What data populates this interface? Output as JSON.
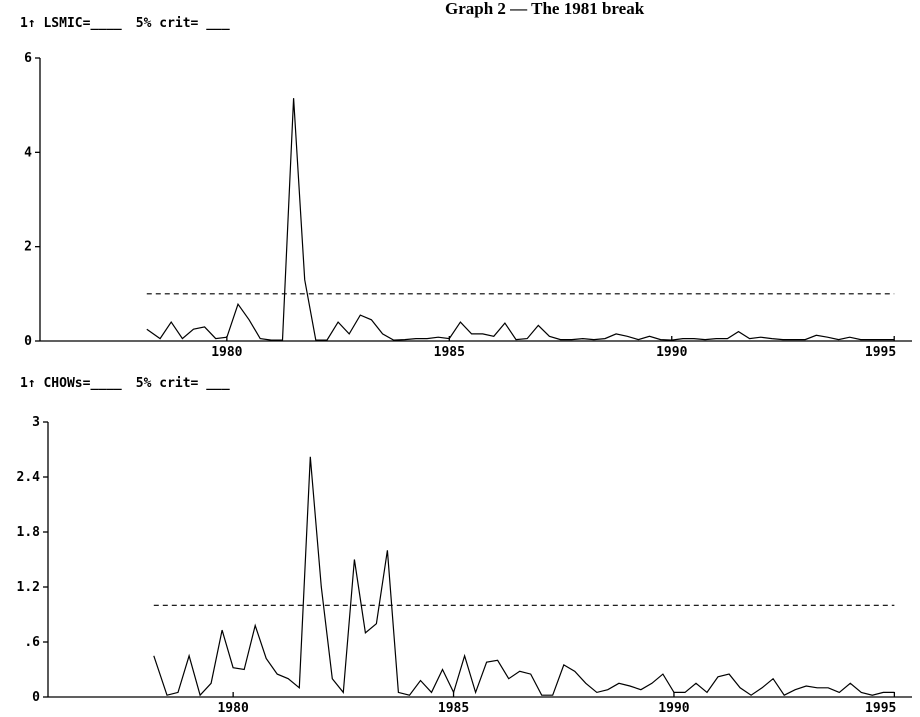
{
  "page": {
    "title": "Graph 2 — The 1981 break"
  },
  "chart_data": [
    {
      "type": "line",
      "legend": {
        "prefix": "1↑ LSMIC=",
        "series_label": "LSMIC",
        "crit_label": "5% crit=",
        "placement": "top-left"
      },
      "xlim": [
        1975.8,
        1995.4
      ],
      "ylim": [
        0,
        6
      ],
      "xticks": [
        1980,
        1985,
        1990,
        1995
      ],
      "xtick_labels": [
        "1980",
        "1985",
        "1990",
        "1995"
      ],
      "yticks": [
        0,
        2,
        4,
        6
      ],
      "ytick_labels": [
        "0",
        "2",
        "4",
        "6"
      ],
      "grid": false,
      "critical_value": 1.0,
      "critical_range": [
        1978.2,
        1995.0
      ],
      "series": [
        {
          "x": [
            1978.2,
            1978.5,
            1978.75,
            1979.0,
            1979.25,
            1979.5,
            1979.75,
            1980.0,
            1980.25,
            1980.5,
            1980.75,
            1981.0,
            1981.25,
            1981.5,
            1981.75,
            1982.0,
            1982.25,
            1982.5,
            1982.75,
            1983.0,
            1983.25,
            1983.5,
            1983.75,
            1984.0,
            1984.25,
            1984.5,
            1984.75,
            1985.0,
            1985.25,
            1985.5,
            1985.75,
            1986.0,
            1986.25,
            1986.5,
            1986.75,
            1987.0,
            1987.25,
            1987.5,
            1987.75,
            1988.0,
            1988.25,
            1988.5,
            1988.75,
            1989.0,
            1989.25,
            1989.5,
            1989.75,
            1990.0,
            1990.25,
            1990.5,
            1990.75,
            1991.0,
            1991.25,
            1991.5,
            1991.75,
            1992.0,
            1992.25,
            1992.5,
            1992.75,
            1993.0,
            1993.25,
            1993.5,
            1993.75,
            1994.0,
            1994.25,
            1994.5,
            1994.75,
            1995.0
          ],
          "values": [
            0.25,
            0.05,
            0.4,
            0.05,
            0.25,
            0.3,
            0.05,
            0.08,
            0.78,
            0.45,
            0.05,
            0.02,
            0.02,
            5.15,
            1.3,
            0.02,
            0.02,
            0.4,
            0.15,
            0.55,
            0.45,
            0.15,
            0.02,
            0.03,
            0.05,
            0.05,
            0.08,
            0.05,
            0.4,
            0.15,
            0.15,
            0.1,
            0.38,
            0.03,
            0.05,
            0.33,
            0.1,
            0.03,
            0.03,
            0.05,
            0.03,
            0.05,
            0.15,
            0.1,
            0.03,
            0.1,
            0.03,
            0.02,
            0.05,
            0.05,
            0.03,
            0.05,
            0.05,
            0.2,
            0.05,
            0.08,
            0.05,
            0.03,
            0.03,
            0.03,
            0.12,
            0.08,
            0.03,
            0.08,
            0.03,
            0.03,
            0.03,
            0.03
          ]
        }
      ]
    },
    {
      "type": "line",
      "legend": {
        "prefix": "1↑ CHOWs=",
        "series_label": "CHOWs",
        "crit_label": "5% crit=",
        "placement": "top-left"
      },
      "xlim": [
        1975.8,
        1995.4
      ],
      "ylim": [
        0,
        3
      ],
      "xticks": [
        1980,
        1985,
        1990,
        1995
      ],
      "xtick_labels": [
        "1980",
        "1985",
        "1990",
        "1995"
      ],
      "yticks": [
        0,
        0.6,
        1.2,
        1.8,
        2.4,
        3
      ],
      "ytick_labels": [
        "0",
        ".6",
        "1.2",
        "1.8",
        "2.4",
        "3"
      ],
      "grid": false,
      "critical_value": 1.0,
      "critical_range": [
        1978.2,
        1995.0
      ],
      "series": [
        {
          "x": [
            1978.2,
            1978.5,
            1978.75,
            1979.0,
            1979.25,
            1979.5,
            1979.75,
            1980.0,
            1980.25,
            1980.5,
            1980.75,
            1981.0,
            1981.25,
            1981.5,
            1981.75,
            1982.0,
            1982.25,
            1982.5,
            1982.75,
            1983.0,
            1983.25,
            1983.5,
            1983.75,
            1984.0,
            1984.25,
            1984.5,
            1984.75,
            1985.0,
            1985.25,
            1985.5,
            1985.75,
            1986.0,
            1986.25,
            1986.5,
            1986.75,
            1987.0,
            1987.25,
            1987.5,
            1987.75,
            1988.0,
            1988.25,
            1988.5,
            1988.75,
            1989.0,
            1989.25,
            1989.5,
            1989.75,
            1990.0,
            1990.25,
            1990.5,
            1990.75,
            1991.0,
            1991.25,
            1991.5,
            1991.75,
            1992.0,
            1992.25,
            1992.5,
            1992.75,
            1993.0,
            1993.25,
            1993.5,
            1993.75,
            1994.0,
            1994.25,
            1994.5,
            1994.75,
            1995.0
          ],
          "values": [
            0.45,
            0.02,
            0.05,
            0.45,
            0.02,
            0.15,
            0.73,
            0.32,
            0.3,
            0.78,
            0.42,
            0.25,
            0.2,
            0.1,
            2.62,
            1.2,
            0.2,
            0.05,
            1.5,
            0.7,
            0.8,
            1.6,
            0.05,
            0.02,
            0.18,
            0.05,
            0.3,
            0.05,
            0.45,
            0.05,
            0.38,
            0.4,
            0.2,
            0.28,
            0.25,
            0.02,
            0.02,
            0.35,
            0.28,
            0.15,
            0.05,
            0.08,
            0.15,
            0.12,
            0.08,
            0.15,
            0.25,
            0.05,
            0.05,
            0.15,
            0.05,
            0.22,
            0.25,
            0.1,
            0.02,
            0.1,
            0.2,
            0.02,
            0.08,
            0.12,
            0.1,
            0.1,
            0.05,
            0.15,
            0.05,
            0.02,
            0.05,
            0.05
          ]
        }
      ]
    }
  ]
}
